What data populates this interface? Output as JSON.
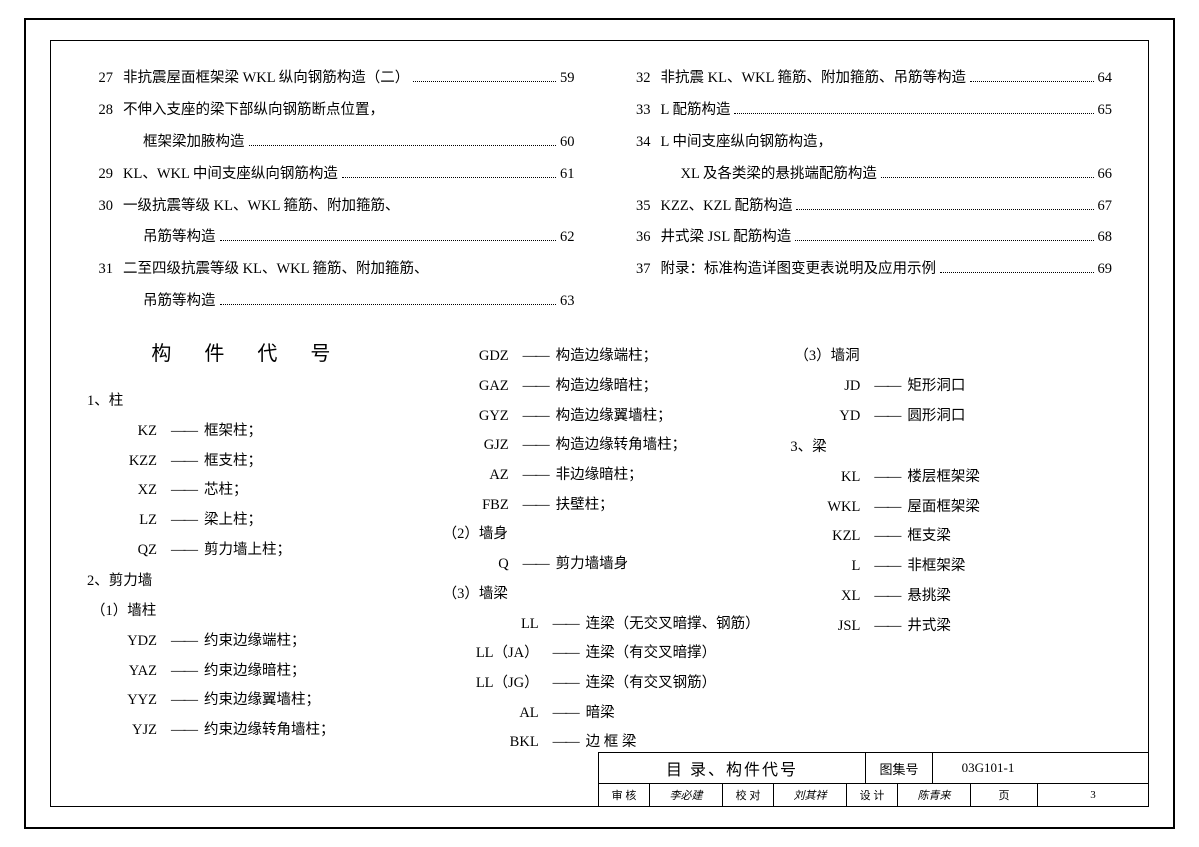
{
  "toc": {
    "left": [
      {
        "n": "27",
        "lines": [
          "非抗震屋面框架梁 WKL 纵向钢筋构造（二）"
        ],
        "p": "59"
      },
      {
        "n": "28",
        "lines": [
          "不伸入支座的梁下部纵向钢筋断点位置，",
          "框架梁加腋构造"
        ],
        "p": "60"
      },
      {
        "n": "29",
        "lines": [
          "KL、WKL 中间支座纵向钢筋构造"
        ],
        "p": "61"
      },
      {
        "n": "30",
        "lines": [
          "一级抗震等级 KL、WKL 箍筋、附加箍筋、",
          "吊筋等构造"
        ],
        "p": "62"
      },
      {
        "n": "31",
        "lines": [
          "二至四级抗震等级 KL、WKL 箍筋、附加箍筋、",
          "吊筋等构造"
        ],
        "p": "63"
      }
    ],
    "right": [
      {
        "n": "32",
        "lines": [
          "非抗震 KL、WKL 箍筋、附加箍筋、吊筋等构造"
        ],
        "p": "64"
      },
      {
        "n": "33",
        "lines": [
          "L 配筋构造"
        ],
        "p": "65"
      },
      {
        "n": "34",
        "lines": [
          "L 中间支座纵向钢筋构造，",
          "XL 及各类梁的悬挑端配筋构造"
        ],
        "p": "66"
      },
      {
        "n": "35",
        "lines": [
          "KZZ、KZL 配筋构造"
        ],
        "p": "67"
      },
      {
        "n": "36",
        "lines": [
          "井式梁 JSL 配筋构造"
        ],
        "p": "68"
      },
      {
        "n": "37",
        "lines": [
          "附录：标准构造详图变更表说明及应用示例"
        ],
        "p": "69"
      }
    ]
  },
  "glossary": {
    "title": "构 件 代 号",
    "col1": {
      "s1": {
        "h": "1、柱",
        "items": [
          {
            "c": "KZ",
            "d": "框架柱；"
          },
          {
            "c": "KZZ",
            "d": "框支柱；"
          },
          {
            "c": "XZ",
            "d": "芯柱；"
          },
          {
            "c": "LZ",
            "d": "梁上柱；"
          },
          {
            "c": "QZ",
            "d": "剪力墙上柱；"
          }
        ]
      },
      "s2": {
        "h": "2、剪力墙"
      },
      "s2a": {
        "h": "（1）墙柱",
        "items": [
          {
            "c": "YDZ",
            "d": "约束边缘端柱；"
          },
          {
            "c": "YAZ",
            "d": "约束边缘暗柱；"
          },
          {
            "c": "YYZ",
            "d": "约束边缘翼墙柱；"
          },
          {
            "c": "YJZ",
            "d": "约束边缘转角墙柱；"
          }
        ]
      }
    },
    "col2": {
      "top": [
        {
          "c": "GDZ",
          "d": "构造边缘端柱；"
        },
        {
          "c": "GAZ",
          "d": "构造边缘暗柱；"
        },
        {
          "c": "GYZ",
          "d": "构造边缘翼墙柱；"
        },
        {
          "c": "GJZ",
          "d": "构造边缘转角墙柱；"
        },
        {
          "c": "AZ",
          "d": "非边缘暗柱；"
        },
        {
          "c": "FBZ",
          "d": "扶壁柱；"
        }
      ],
      "s2b": {
        "h": "（2）墙身",
        "items": [
          {
            "c": "Q",
            "d": "剪力墙墙身"
          }
        ]
      },
      "s2c": {
        "h": "（3）墙梁",
        "items": [
          {
            "c": "LL",
            "d": "连梁（无交叉暗撑、钢筋）"
          },
          {
            "c": "LL（JA）",
            "d": "连梁（有交叉暗撑）"
          },
          {
            "c": "LL（JG）",
            "d": "连梁（有交叉钢筋）"
          },
          {
            "c": "AL",
            "d": "暗梁"
          },
          {
            "c": "BKL",
            "d": "边 框 梁"
          }
        ]
      }
    },
    "col3": {
      "s2d": {
        "h": "（3）墙洞",
        "items": [
          {
            "c": "JD",
            "d": "矩形洞口"
          },
          {
            "c": "YD",
            "d": "圆形洞口"
          }
        ]
      },
      "s3": {
        "h": "3、梁",
        "items": [
          {
            "c": "KL",
            "d": "楼层框架梁"
          },
          {
            "c": "WKL",
            "d": "屋面框架梁"
          },
          {
            "c": "KZL",
            "d": "框支梁"
          },
          {
            "c": "L",
            "d": "非框架梁"
          },
          {
            "c": "XL",
            "d": "悬挑梁"
          },
          {
            "c": "JSL",
            "d": "井式梁"
          }
        ]
      }
    }
  },
  "titleblock": {
    "title": "目 录、构件代号",
    "atlas_label": "图集号",
    "atlas_no": "03G101-1",
    "rev": "审 核",
    "rev_sig": "李必建",
    "chk": "校 对",
    "chk_sig": "刘其祥",
    "des": "设 计",
    "des_sig": "陈青来",
    "page_label": "页",
    "page_no": "3"
  }
}
